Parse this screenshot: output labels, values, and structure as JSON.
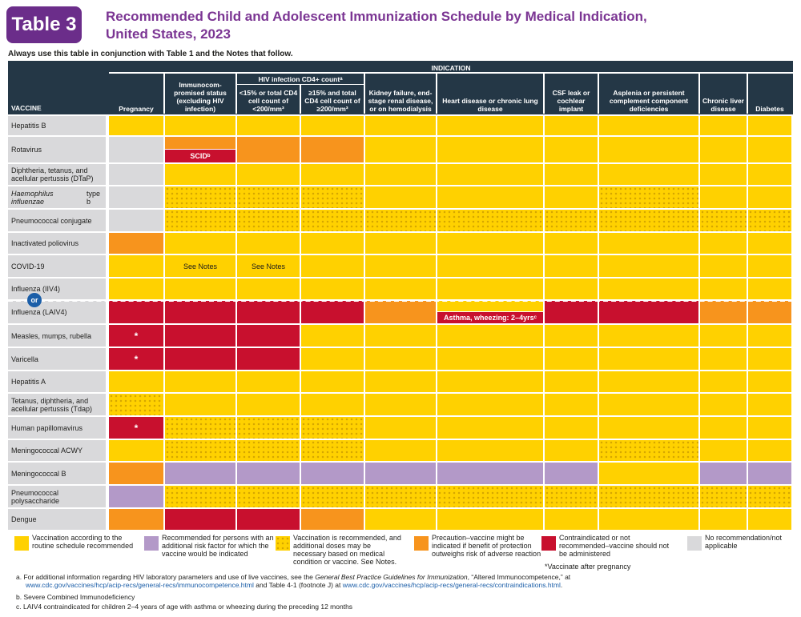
{
  "header": {
    "badge": "Table 3",
    "title_line1": "Recommended Child and Adolescent Immunization Schedule by Medical Indication,",
    "title_line2": "United States, 2023",
    "instruction": "Always use this table in conjunction with Table 1 and the Notes that follow."
  },
  "table_header": {
    "indication": "INDICATION",
    "vaccine": "VACCINE",
    "hiv_group": "HIV infection CD4+ count",
    "hiv_group_sup": "a",
    "columns": [
      "Pregnancy",
      "Immunocom- promised status (excluding HIV infection)",
      "<15% or total CD4 cell count of <200/mm³",
      "≥15% and total CD4 cell count of ≥200/mm³",
      "Kidney failure, end-stage renal disease, or on hemodialysis",
      "Heart disease or chronic lung disease",
      "CSF leak or cochlear implant",
      "Asplenia or persistent complement component deficiencies",
      "Chronic liver disease",
      "Diabetes"
    ]
  },
  "rows": [
    {
      "label": "Hepatitis B"
    },
    {
      "label": "Rotavirus",
      "note": "SCID",
      "note_sup": "b"
    },
    {
      "label": "Diphtheria, tetanus, and acellular pertussis (DTaP)"
    },
    {
      "label": "Haemophilus influenzae type b",
      "italic_part": "Haemophilus influenzae"
    },
    {
      "label": "Pneumococcal conjugate"
    },
    {
      "label": "Inactivated poliovirus"
    },
    {
      "label": "COVID-19",
      "note": "See Notes"
    },
    {
      "label": "Influenza (IIV4)"
    },
    {
      "label": "Influenza (LAIV4)",
      "note": "Asthma, wheezing: 2–4yrs",
      "note_sup": "c"
    },
    {
      "label": "Measles, mumps, rubella",
      "mark": "*"
    },
    {
      "label": "Varicella",
      "mark": "*"
    },
    {
      "label": "Hepatitis A"
    },
    {
      "label": "Tetanus, diphtheria, and acellular pertussis (Tdap)"
    },
    {
      "label": "Human papillomavirus",
      "mark": "*"
    },
    {
      "label": "Meningococcal ACWY"
    },
    {
      "label": "Meningococcal B"
    },
    {
      "label": "Pneumococcal polysaccharide"
    },
    {
      "label": "Dengue"
    }
  ],
  "or_label": "or",
  "legend": [
    {
      "color": "#ffd100",
      "text": "Vaccination according to the routine schedule recommended"
    },
    {
      "color": "#b399c8",
      "text": "Recommended for persons with an additional risk factor for which the vaccine would be indicated"
    },
    {
      "color": "#ffd100",
      "text": "Vaccination is recommended, and additional doses may be necessary based on medical condition or vaccine. See Notes."
    },
    {
      "color": "#f7941d",
      "text": "Precaution–vaccine might be indicated if benefit of protection outweighs risk of adverse reaction"
    },
    {
      "color": "#c8102e",
      "text": "Contraindicated or not recommended–vaccine should not be administered"
    },
    {
      "color": "#d9d9db",
      "text": "No recommendation/not applicable"
    }
  ],
  "legend_note": "*Vaccinate after pregnancy",
  "footnotes": {
    "a_pre": "a.  For additional information regarding HIV laboratory parameters and use of live vaccines, see the ",
    "a_italic": "General Best Practice Guidelines for Immunization",
    "a_mid": ", “Altered Immunocompetence,” at",
    "a_link1": "www.cdc.gov/vaccines/hcp/acip-recs/general-recs/immunocompetence.html",
    "a_mid2": " and Table 4-1 (footnote J) at ",
    "a_link2": "www.cdc.gov/vaccines/hcp/acip-recs/general-recs/contraindications.html",
    "a_end": ".",
    "b": "b.  Severe Combined Immunodeficiency",
    "c": "c.  LAIV4 contraindicated for children 2–4 years of age with asthma or wheezing during the preceding 12 months"
  },
  "colors": {
    "routine": "#ffd100",
    "risk": "#b399c8",
    "precaution": "#f7941d",
    "contraindicated": "#c8102e",
    "na": "#d9d9db",
    "header": "#243746",
    "title": "#7b3593"
  }
}
